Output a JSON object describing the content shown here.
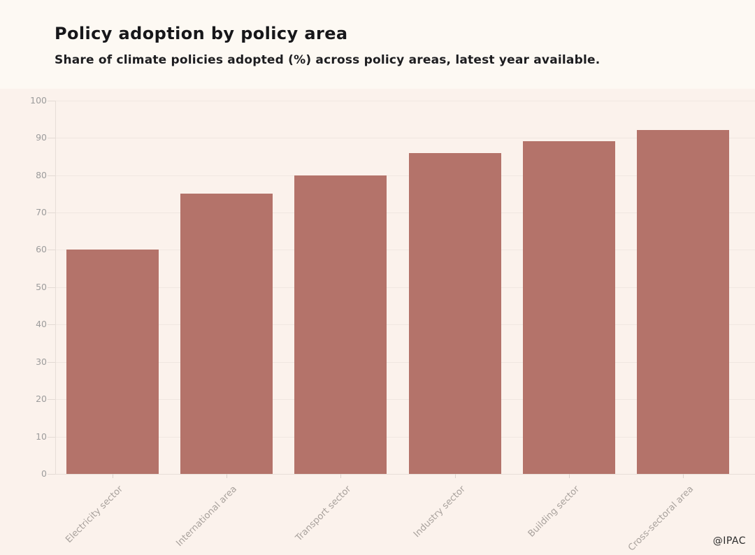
{
  "header": {
    "title": "Policy adoption by policy area",
    "subtitle": "Share of climate policies adopted (%) across policy areas, latest year available."
  },
  "footer": {
    "credit": "@IPAC"
  },
  "chart_data": {
    "type": "bar",
    "title": "Policy adoption by policy area",
    "subtitle": "Share of climate policies adopted (%) across policy areas, latest year available.",
    "categories": [
      "Electricity sector",
      "International area",
      "Transport sector",
      "Industry sector",
      "Building sector",
      "Cross-sectoral area"
    ],
    "values": [
      60,
      75,
      80,
      86,
      89,
      92
    ],
    "xlabel": "",
    "ylabel": "",
    "ylim": [
      0,
      100
    ],
    "yticks": [
      0,
      10,
      20,
      30,
      40,
      50,
      60,
      70,
      80,
      90,
      100
    ],
    "grid": true,
    "legend": false,
    "bar_color": "#b4736a",
    "credit": "@IPAC"
  },
  "colors": {
    "page_bg": "#fdf9f3",
    "chart_bg": "#fbf2ec",
    "bar": "#b4736a",
    "gridline": "#f0e7e1",
    "axis": "#e7ded8",
    "y_tick_label": "#9c9c9c",
    "x_tick_label": "#a9a29d",
    "title": "#17171a",
    "credit": "#2b2b2b"
  }
}
